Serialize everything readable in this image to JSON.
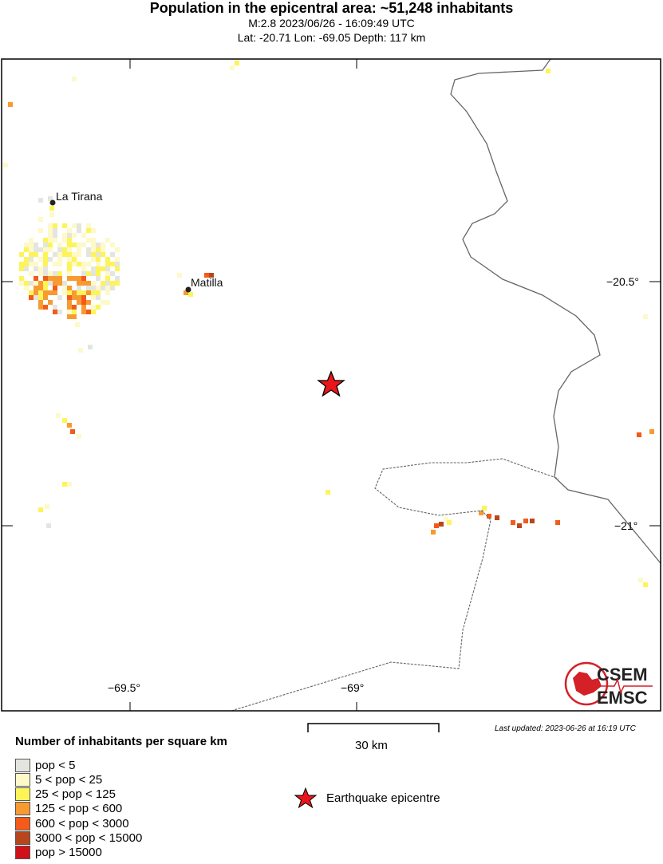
{
  "header": {
    "title": "Population in the epicentral area: ~51,248 inhabitants",
    "event": "M:2.8 2023/06/26 - 16:09:49 UTC",
    "location": "Lat: -20.71 Lon: -69.05 Depth: 117 km"
  },
  "map": {
    "places": [
      {
        "name": "La Tirana"
      },
      {
        "name": "Matilla"
      }
    ],
    "lon_ticks": [
      "−69.5°",
      "−69°"
    ],
    "lat_ticks": [
      "−20.5°",
      "−21°"
    ],
    "epicenter": {
      "lat": -20.71,
      "lon": -69.05,
      "color": "#e8161b"
    },
    "logo": {
      "text_top": "CSEM",
      "text_bottom": "EMSC",
      "color": "#d42027"
    }
  },
  "scale": {
    "label": "30 km"
  },
  "last_updated": "Last updated: 2023-06-26 at 16:19 UTC",
  "legend": {
    "title": "Number of inhabitants per square km",
    "items": [
      {
        "label": "pop < 5",
        "color": "#e5e5e0"
      },
      {
        "label": "5 < pop < 25",
        "color": "#fdf9c8"
      },
      {
        "label": "25 < pop < 125",
        "color": "#fdf45a"
      },
      {
        "label": "125 < pop < 600",
        "color": "#f89a32"
      },
      {
        "label": "600 < pop < 3000",
        "color": "#f45a1a"
      },
      {
        "label": "3000 < pop < 15000",
        "color": "#b8461d"
      },
      {
        "label": "pop > 15000",
        "color": "#d1111a"
      }
    ],
    "epicentre_label": "Earthquake epicentre"
  }
}
